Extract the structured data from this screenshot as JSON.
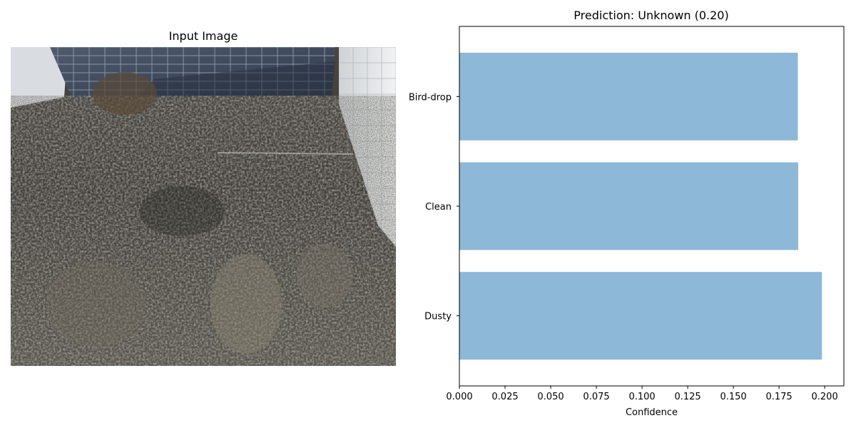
{
  "left_panel": {
    "title": "Input Image"
  },
  "chart_data": {
    "type": "bar",
    "orientation": "horizontal",
    "title": "Prediction: Unknown (0.20)",
    "xlabel": "Confidence",
    "ylabel": "",
    "categories": [
      "Dusty",
      "Clean",
      "Bird-drop"
    ],
    "values": [
      0.1985,
      0.1855,
      0.1853
    ],
    "xlim": [
      0,
      0.2105
    ],
    "xticks": [
      0.0,
      0.025,
      0.05,
      0.075,
      0.1,
      0.125,
      0.15,
      0.175,
      0.2
    ],
    "xtick_labels": [
      "0.000",
      "0.025",
      "0.050",
      "0.075",
      "0.100",
      "0.125",
      "0.150",
      "0.175",
      "0.200"
    ],
    "bar_color": "#8db8d8",
    "grid": false,
    "legend": "none"
  }
}
